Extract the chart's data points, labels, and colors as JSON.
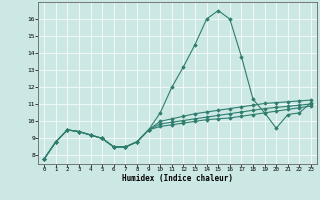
{
  "title": "",
  "xlabel": "Humidex (Indice chaleur)",
  "background_color": "#cce8e4",
  "line_color": "#2e7d6e",
  "grid_color": "#ffffff",
  "xlim": [
    -0.5,
    23.5
  ],
  "ylim": [
    7.5,
    17.0
  ],
  "yticks": [
    8,
    9,
    10,
    11,
    12,
    13,
    14,
    15,
    16
  ],
  "xticks": [
    0,
    1,
    2,
    3,
    4,
    5,
    6,
    7,
    8,
    9,
    10,
    11,
    12,
    13,
    14,
    15,
    16,
    17,
    18,
    19,
    20,
    21,
    22,
    23
  ],
  "series": [
    [
      7.8,
      8.8,
      9.5,
      9.4,
      9.2,
      9.0,
      8.5,
      8.5,
      8.8,
      9.5,
      10.5,
      12.0,
      13.2,
      14.5,
      16.0,
      16.5,
      16.0,
      13.8,
      11.3,
      10.5,
      9.6,
      10.4,
      10.5,
      11.1
    ],
    [
      7.8,
      8.8,
      9.5,
      9.4,
      9.2,
      9.0,
      8.5,
      8.5,
      8.8,
      9.5,
      10.0,
      10.15,
      10.3,
      10.45,
      10.55,
      10.65,
      10.75,
      10.85,
      10.95,
      11.05,
      11.1,
      11.15,
      11.2,
      11.25
    ],
    [
      7.8,
      8.8,
      9.5,
      9.4,
      9.2,
      9.0,
      8.5,
      8.5,
      8.8,
      9.5,
      9.85,
      9.95,
      10.05,
      10.15,
      10.25,
      10.35,
      10.45,
      10.55,
      10.65,
      10.75,
      10.82,
      10.88,
      10.95,
      11.02
    ],
    [
      7.8,
      8.8,
      9.5,
      9.4,
      9.2,
      9.0,
      8.5,
      8.5,
      8.8,
      9.5,
      9.7,
      9.8,
      9.9,
      10.0,
      10.1,
      10.15,
      10.2,
      10.3,
      10.4,
      10.5,
      10.6,
      10.7,
      10.8,
      10.9
    ]
  ]
}
